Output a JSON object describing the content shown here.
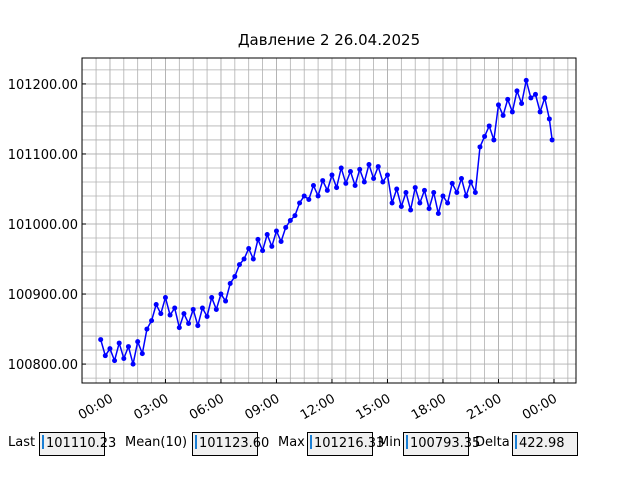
{
  "chart_data": {
    "type": "line",
    "title": "Давление 2 26.04.2025",
    "x": [
      -0.5,
      -0.25,
      0,
      0.25,
      0.5,
      0.75,
      1,
      1.25,
      1.5,
      1.75,
      2,
      2.25,
      2.5,
      2.75,
      3,
      3.25,
      3.5,
      3.75,
      4,
      4.25,
      4.5,
      4.75,
      5,
      5.25,
      5.5,
      5.75,
      6,
      6.25,
      6.5,
      6.75,
      7,
      7.25,
      7.5,
      7.75,
      8,
      8.25,
      8.5,
      8.75,
      9,
      9.25,
      9.5,
      9.75,
      10,
      10.25,
      10.5,
      10.75,
      11,
      11.25,
      11.5,
      11.75,
      12,
      12.25,
      12.5,
      12.75,
      13,
      13.25,
      13.5,
      13.75,
      14,
      14.25,
      14.5,
      14.75,
      15,
      15.25,
      15.5,
      15.75,
      16,
      16.25,
      16.5,
      16.75,
      17,
      17.25,
      17.5,
      17.75,
      18,
      18.25,
      18.5,
      18.75,
      19,
      19.25,
      19.5,
      19.75,
      20,
      20.25,
      20.5,
      20.75,
      21,
      21.25,
      21.5,
      21.75,
      22,
      22.25,
      22.5,
      22.75,
      23,
      23.25,
      23.5,
      23.75,
      23.9
    ],
    "series": [
      {
        "color": "#0000ff",
        "values": [
          100835,
          100812,
          100822,
          100805,
          100830,
          100808,
          100825,
          100800,
          100832,
          100815,
          100850,
          100862,
          100885,
          100872,
          100895,
          100870,
          100880,
          100852,
          100872,
          100858,
          100878,
          100855,
          100880,
          100868,
          100895,
          100878,
          100900,
          100890,
          100915,
          100925,
          100942,
          100950,
          100965,
          100950,
          100978,
          100962,
          100985,
          100968,
          100990,
          100975,
          100995,
          101005,
          101012,
          101030,
          101040,
          101035,
          101055,
          101040,
          101062,
          101048,
          101070,
          101052,
          101080,
          101058,
          101075,
          101055,
          101078,
          101060,
          101085,
          101065,
          101082,
          101060,
          101070,
          101030,
          101050,
          101025,
          101045,
          101020,
          101052,
          101030,
          101048,
          101022,
          101045,
          101015,
          101040,
          101030,
          101058,
          101045,
          101065,
          101040,
          101060,
          101045,
          101110,
          101125,
          101140,
          101120,
          101170,
          101155,
          101178,
          101160,
          101190,
          101172,
          101205,
          101180,
          101185,
          101160,
          101180,
          101150,
          101120
        ]
      }
    ],
    "xlim": [
      -1.51,
      25.19
    ],
    "xticks": [
      {
        "value": 0,
        "label": "00:00"
      },
      {
        "value": 3,
        "label": "03:00"
      },
      {
        "value": 6,
        "label": "06:00"
      },
      {
        "value": 9,
        "label": "09:00"
      },
      {
        "value": 12,
        "label": "12:00"
      },
      {
        "value": 15,
        "label": "15:00"
      },
      {
        "value": 18,
        "label": "18:00"
      },
      {
        "value": 21,
        "label": "21:00"
      },
      {
        "value": 24,
        "label": "00:00"
      }
    ],
    "ylim": [
      100773,
      101237
    ],
    "yticks": [
      {
        "value": 100800,
        "label": "100800.00"
      },
      {
        "value": 100900,
        "label": "100900.00"
      },
      {
        "value": 101000,
        "label": "101000.00"
      },
      {
        "value": 101100,
        "label": "101100.00"
      },
      {
        "value": 101200,
        "label": "101200.00"
      }
    ],
    "grid": true,
    "minor_grid": true
  },
  "controls": [
    {
      "label": "Last",
      "value": "101110.23"
    },
    {
      "label": "Mean(10)",
      "value": "101123.60"
    },
    {
      "label": "Max",
      "value": "101216.33"
    },
    {
      "label": "Min",
      "value": "100793.35"
    },
    {
      "label": "Delta",
      "value": "422.98"
    }
  ]
}
